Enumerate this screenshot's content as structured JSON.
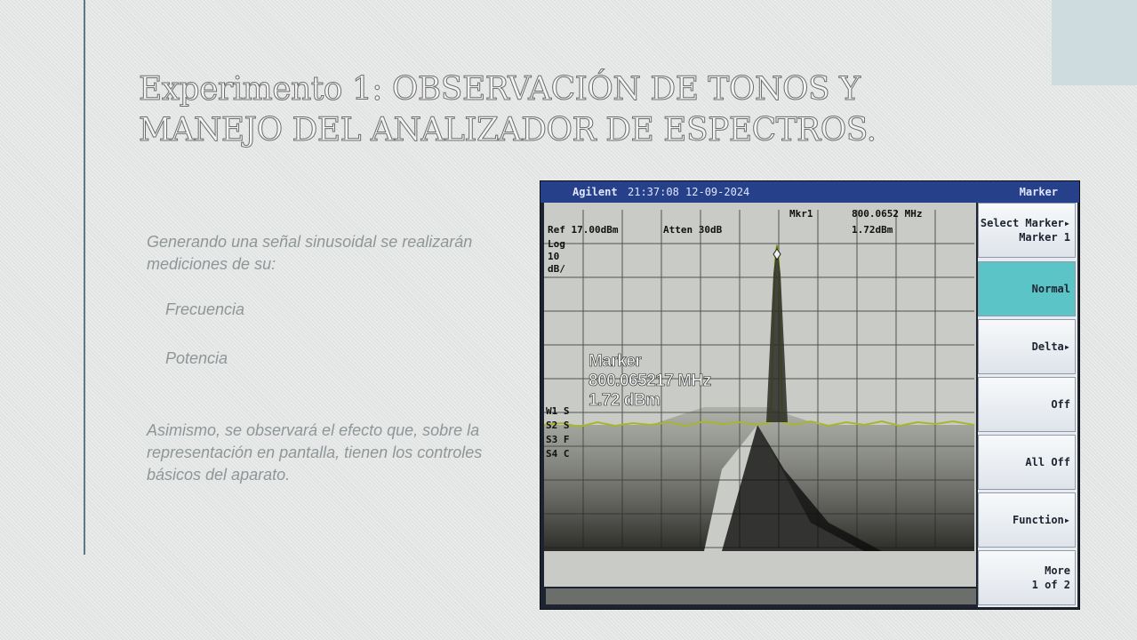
{
  "slide": {
    "title_line1": "Experimento 1: OBSERVACIÓN DE TONOS Y",
    "title_line2": "MANEJO DEL ANALIZADOR DE ESPECTROS.",
    "intro": "Generando una señal sinusoidal se realizarán mediciones de su:",
    "bullets": [
      "Frecuencia",
      "Potencia"
    ],
    "closing": "Asimismo, se observará el efecto que, sobre la representación en pantalla, tienen los controles básicos del aparato."
  },
  "analyzer": {
    "brand": "Agilent",
    "datetime": "21:37:08 12-09-2024",
    "menu_title": "Marker",
    "ref_level": "Ref 17.00dBm",
    "atten": "Atten 30dB",
    "mkr_label": "Mkr1",
    "mkr_freq_small": "800.0652 MHz",
    "mkr_power_small": "1.72dBm",
    "scale_labels": [
      "Log",
      "10",
      "dB/"
    ],
    "left_markers": [
      "W1 S",
      "S2 S",
      "S3 F",
      "S4 C"
    ],
    "marker_overlay": {
      "title": "Marker",
      "frequency": "800.065217 MHz",
      "power": "1.72 dBm"
    },
    "softkeys": [
      {
        "line1": "Select Marker▸",
        "line2": "Marker 1",
        "active": false
      },
      {
        "line1": "Normal",
        "line2": "",
        "active": true
      },
      {
        "line1": "Delta▸",
        "line2": "",
        "active": false
      },
      {
        "line1": "Off",
        "line2": "",
        "active": false
      },
      {
        "line1": "All Off",
        "line2": "",
        "active": false
      },
      {
        "line1": "Function▸",
        "line2": "",
        "active": false
      },
      {
        "line1": "More",
        "line2": "1 of 2",
        "active": false
      }
    ]
  },
  "colors": {
    "background": "#e2e4e4",
    "rule": "#5f7888",
    "trace": "#a8b62a",
    "screen_bg": "#c8ccc7",
    "active_softkey": "#5ac4c6"
  }
}
